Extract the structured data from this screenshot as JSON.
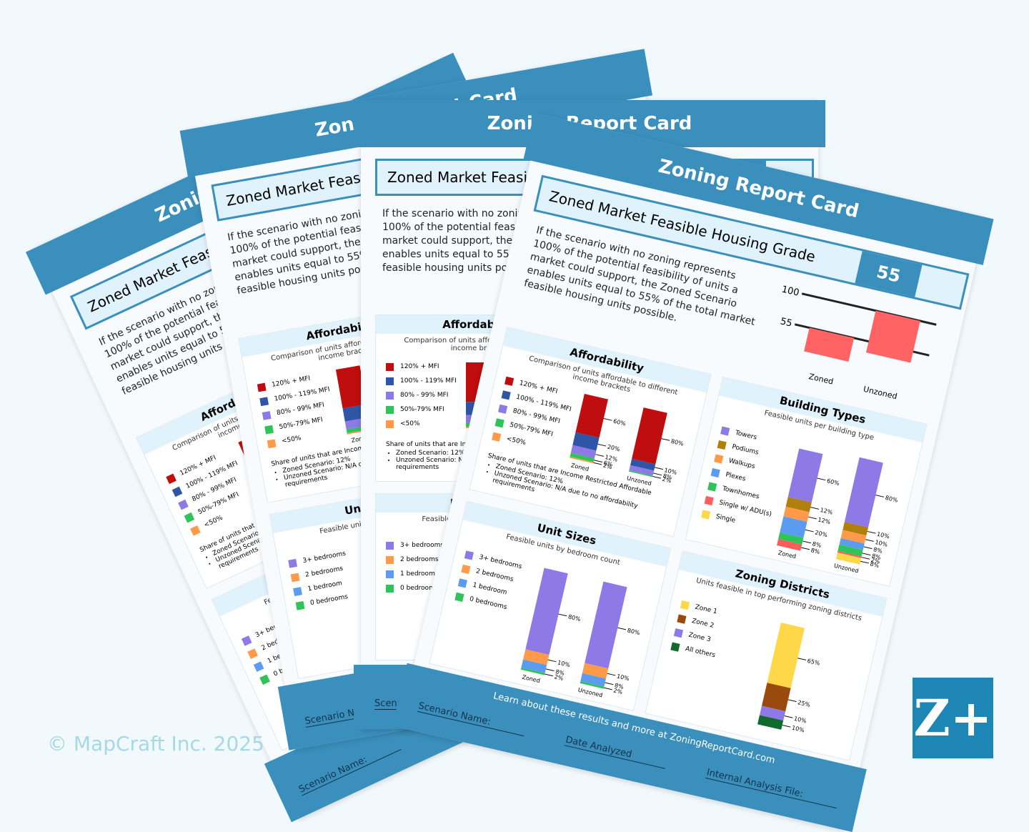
{
  "header": {
    "title": "Zoning Report Card",
    "subtitle": "Zoned Market Feasible Housing Grade"
  },
  "intro": "If the scenario with no zoning represents 100% of the potential feasibility of units a market could support, the Zoned Scenario enables units equal to 55% of the total market feasible housing units possible.",
  "grade_chart": {
    "type": "bar",
    "categories": [
      "Zoned",
      "Unzoned"
    ],
    "values": [
      55,
      100
    ],
    "color": "#ff6363",
    "ylim": [
      0,
      100
    ],
    "yticks": [
      55,
      100
    ]
  },
  "panels": [
    {
      "title": "Affordability",
      "subtitle": "Comparison of units affordable to different income brackets",
      "series": [
        {
          "name": "120% + MFI",
          "color": "#c00d0d"
        },
        {
          "name": "100% - 119% MFI",
          "color": "#2f56a6"
        },
        {
          "name": "80% - 99% MFI",
          "color": "#8d7ae6"
        },
        {
          "name": "50%-79% MFI",
          "color": "#2fc45a"
        },
        {
          "name": "<50%",
          "color": "#ff9a4a"
        }
      ],
      "bars": [
        {
          "name": "Zoned",
          "values": [
            60,
            20,
            12,
            6,
            2
          ],
          "value_labels": [
            "60%",
            "20%",
            "12%",
            "6%",
            "2%"
          ]
        },
        {
          "name": "Unzoned",
          "values": [
            80,
            10,
            8,
            2,
            null
          ],
          "value_labels": [
            "80%",
            "10%",
            "8%",
            "2%",
            null
          ]
        }
      ],
      "note": "Share of units that are Income Restricted Affordable",
      "bullets": [
        "Zoned Scenario: 12%",
        "Unzoned Scenario: N/A due to no affordability requirements"
      ]
    },
    {
      "title": "Building Types",
      "subtitle": "Feasible units per building type",
      "series": [
        {
          "name": "Towers",
          "color": "#8d7ae6"
        },
        {
          "name": "Podiums",
          "color": "#b07f0c"
        },
        {
          "name": "Walkups",
          "color": "#ff9a4a"
        },
        {
          "name": "Plexes",
          "color": "#5b9cf0"
        },
        {
          "name": "Townhomes",
          "color": "#2fc45a"
        },
        {
          "name": "Single w/ ADU(s)",
          "color": "#ff5c5c"
        },
        {
          "name": "Single",
          "color": "#ffd84a"
        }
      ],
      "bars": [
        {
          "name": "Zoned",
          "values": [
            60,
            12,
            12,
            20,
            8,
            8,
            null
          ],
          "value_labels": [
            "60%",
            "12%",
            "12%",
            "20%",
            "8%",
            "8%",
            null
          ]
        },
        {
          "name": "Unzoned",
          "values": [
            80,
            10,
            10,
            8,
            8,
            2,
            8
          ],
          "value_labels": [
            "80%",
            "10%",
            "10%",
            "8%",
            "8%",
            "2%",
            "8%"
          ]
        }
      ]
    },
    {
      "title": "Unit Sizes",
      "subtitle": "Feasible units by bedroom count",
      "series": [
        {
          "name": "3+ bedrooms",
          "color": "#8d7ae6"
        },
        {
          "name": "2 bedrooms",
          "color": "#ff9a4a"
        },
        {
          "name": "1 bedroom",
          "color": "#5b9cf0"
        },
        {
          "name": "0 bedrooms",
          "color": "#2fc45a"
        }
      ],
      "bars": [
        {
          "name": "Zoned",
          "values": [
            80,
            10,
            8,
            2
          ],
          "value_labels": [
            "80%",
            "10%",
            "8%",
            "2%"
          ]
        },
        {
          "name": "Unzoned",
          "values": [
            80,
            10,
            8,
            2
          ],
          "value_labels": [
            "80%",
            "10%",
            "8%",
            "2%"
          ]
        }
      ]
    },
    {
      "title": "Zoning Districts",
      "subtitle": "Units feasible in top performing zoning districts",
      "series": [
        {
          "name": "Zone 1",
          "color": "#ffd84a"
        },
        {
          "name": "Zone 2",
          "color": "#9a4a0c"
        },
        {
          "name": "Zone 3",
          "color": "#8d7ae6"
        },
        {
          "name": "All others",
          "color": "#0e6b2b"
        }
      ],
      "bars": [
        {
          "values": [
            65,
            25,
            10,
            10
          ],
          "value_labels": [
            "65%",
            "25%",
            "10%",
            "10%"
          ]
        }
      ]
    }
  ],
  "footer": {
    "link": "Learn about these results and more at ZoningReportCard.com",
    "fields": [
      "Scenario Name:",
      "Date Analyzed",
      "Internal Analysis File:"
    ]
  },
  "copyright": "© MapCraft Inc. 2025",
  "logo": "Z+"
}
